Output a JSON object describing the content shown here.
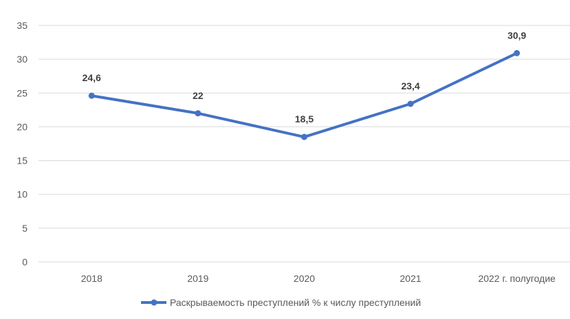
{
  "chart_data": {
    "type": "line",
    "categories": [
      "2018",
      "2019",
      "2020",
      "2021",
      "2022 г. полугодие"
    ],
    "series": [
      {
        "name": "Раскрываемость преступлений % к числу преступлений",
        "values": [
          24.6,
          22,
          18.5,
          23.4,
          30.9
        ],
        "data_labels": [
          "24,6",
          "22",
          "18,5",
          "23,4",
          "30,9"
        ],
        "color": "#4472c4"
      }
    ],
    "yticks": [
      0,
      5,
      10,
      15,
      20,
      25,
      30,
      35
    ],
    "ylim": [
      0,
      35
    ],
    "grid": true,
    "legend_position": "bottom"
  }
}
